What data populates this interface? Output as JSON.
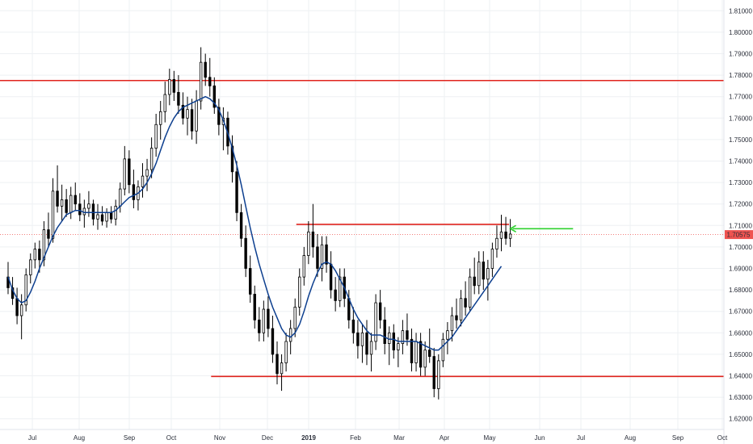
{
  "chart_data": {
    "type": "candlestick",
    "title": "",
    "xlabel": "",
    "ylabel": "",
    "ylim": [
      1.615,
      1.815
    ],
    "y_ticks": [
      "1.62000",
      "1.63000",
      "1.64000",
      "1.65000",
      "1.66000",
      "1.67000",
      "1.68000",
      "1.69000",
      "1.70000",
      "1.71000",
      "1.72000",
      "1.73000",
      "1.74000",
      "1.75000",
      "1.76000",
      "1.77000",
      "1.78000",
      "1.79000",
      "1.80000",
      "1.81000"
    ],
    "x_ticks": [
      "Jul",
      "Aug",
      "Sep",
      "Oct",
      "Nov",
      "Dec",
      "2019",
      "Feb",
      "Mar",
      "Apr",
      "May",
      "Jun",
      "Jul",
      "Aug",
      "Sep",
      "Oct"
    ],
    "last_price": "1.70575",
    "last_price_value": 1.70575,
    "grid": true,
    "colors": {
      "up": "#ffffff",
      "down": "#000000",
      "wick": "#000000",
      "moving_average": "#0d3f8f",
      "level_line": "#e0241d",
      "arrow": "#2fd12f",
      "price_label": "#ef5350",
      "grid": "#eef0f3"
    },
    "candles": [
      [
        1.686,
        1.693,
        1.678,
        1.681
      ],
      [
        1.681,
        1.686,
        1.673,
        1.676
      ],
      [
        1.676,
        1.681,
        1.664,
        1.668
      ],
      [
        1.668,
        1.678,
        1.657,
        1.673
      ],
      [
        1.673,
        1.69,
        1.67,
        1.687
      ],
      [
        1.687,
        1.697,
        1.683,
        1.694
      ],
      [
        1.694,
        1.702,
        1.69,
        1.699
      ],
      [
        1.699,
        1.703,
        1.688,
        1.694
      ],
      [
        1.694,
        1.712,
        1.691,
        1.708
      ],
      [
        1.708,
        1.716,
        1.7,
        1.704
      ],
      [
        1.704,
        1.732,
        1.702,
        1.726
      ],
      [
        1.726,
        1.738,
        1.716,
        1.719
      ],
      [
        1.719,
        1.729,
        1.712,
        1.722
      ],
      [
        1.722,
        1.727,
        1.714,
        1.716
      ],
      [
        1.716,
        1.728,
        1.713,
        1.724
      ],
      [
        1.724,
        1.73,
        1.717,
        1.72
      ],
      [
        1.72,
        1.725,
        1.712,
        1.715
      ],
      [
        1.715,
        1.722,
        1.709,
        1.718
      ],
      [
        1.718,
        1.726,
        1.714,
        1.72
      ],
      [
        1.72,
        1.722,
        1.71,
        1.713
      ],
      [
        1.713,
        1.72,
        1.708,
        1.715
      ],
      [
        1.715,
        1.719,
        1.71,
        1.712
      ],
      [
        1.712,
        1.718,
        1.709,
        1.716
      ],
      [
        1.716,
        1.719,
        1.711,
        1.713
      ],
      [
        1.713,
        1.722,
        1.71,
        1.719
      ],
      [
        1.719,
        1.73,
        1.716,
        1.727
      ],
      [
        1.727,
        1.747,
        1.724,
        1.741
      ],
      [
        1.741,
        1.745,
        1.725,
        1.729
      ],
      [
        1.729,
        1.736,
        1.718,
        1.722
      ],
      [
        1.722,
        1.731,
        1.717,
        1.728
      ],
      [
        1.728,
        1.739,
        1.723,
        1.733
      ],
      [
        1.733,
        1.741,
        1.726,
        1.736
      ],
      [
        1.736,
        1.751,
        1.732,
        1.746
      ],
      [
        1.746,
        1.762,
        1.742,
        1.757
      ],
      [
        1.757,
        1.768,
        1.75,
        1.763
      ],
      [
        1.763,
        1.777,
        1.758,
        1.771
      ],
      [
        1.771,
        1.783,
        1.766,
        1.778
      ],
      [
        1.778,
        1.782,
        1.768,
        1.772
      ],
      [
        1.772,
        1.78,
        1.762,
        1.766
      ],
      [
        1.766,
        1.772,
        1.757,
        1.76
      ],
      [
        1.76,
        1.77,
        1.752,
        1.764
      ],
      [
        1.764,
        1.769,
        1.75,
        1.754
      ],
      [
        1.754,
        1.773,
        1.748,
        1.768
      ],
      [
        1.768,
        1.793,
        1.764,
        1.786
      ],
      [
        1.786,
        1.79,
        1.775,
        1.779
      ],
      [
        1.779,
        1.788,
        1.77,
        1.775
      ],
      [
        1.775,
        1.779,
        1.762,
        1.765
      ],
      [
        1.765,
        1.769,
        1.752,
        1.757
      ],
      [
        1.757,
        1.765,
        1.745,
        1.76
      ],
      [
        1.76,
        1.763,
        1.743,
        1.747
      ],
      [
        1.747,
        1.752,
        1.73,
        1.735
      ],
      [
        1.735,
        1.74,
        1.712,
        1.716
      ],
      [
        1.716,
        1.72,
        1.7,
        1.704
      ],
      [
        1.704,
        1.71,
        1.686,
        1.69
      ],
      [
        1.69,
        1.696,
        1.674,
        1.678
      ],
      [
        1.678,
        1.682,
        1.662,
        1.666
      ],
      [
        1.666,
        1.672,
        1.656,
        1.66
      ],
      [
        1.66,
        1.675,
        1.656,
        1.671
      ],
      [
        1.671,
        1.677,
        1.658,
        1.662
      ],
      [
        1.662,
        1.668,
        1.646,
        1.65
      ],
      [
        1.65,
        1.656,
        1.636,
        1.641
      ],
      [
        1.641,
        1.65,
        1.633,
        1.646
      ],
      [
        1.646,
        1.66,
        1.642,
        1.656
      ],
      [
        1.656,
        1.666,
        1.65,
        1.662
      ],
      [
        1.662,
        1.676,
        1.658,
        1.672
      ],
      [
        1.672,
        1.69,
        1.668,
        1.686
      ],
      [
        1.686,
        1.7,
        1.682,
        1.696
      ],
      [
        1.696,
        1.712,
        1.692,
        1.707
      ],
      [
        1.707,
        1.72,
        1.695,
        1.7
      ],
      [
        1.7,
        1.706,
        1.686,
        1.69
      ],
      [
        1.69,
        1.705,
        1.684,
        1.701
      ],
      [
        1.701,
        1.705,
        1.688,
        1.692
      ],
      [
        1.692,
        1.698,
        1.676,
        1.68
      ],
      [
        1.68,
        1.686,
        1.67,
        1.675
      ],
      [
        1.675,
        1.69,
        1.672,
        1.686
      ],
      [
        1.686,
        1.69,
        1.672,
        1.676
      ],
      [
        1.676,
        1.68,
        1.662,
        1.666
      ],
      [
        1.666,
        1.672,
        1.655,
        1.66
      ],
      [
        1.66,
        1.666,
        1.648,
        1.654
      ],
      [
        1.654,
        1.664,
        1.646,
        1.66
      ],
      [
        1.66,
        1.666,
        1.645,
        1.65
      ],
      [
        1.65,
        1.66,
        1.642,
        1.656
      ],
      [
        1.656,
        1.678,
        1.652,
        1.674
      ],
      [
        1.674,
        1.68,
        1.662,
        1.666
      ],
      [
        1.666,
        1.672,
        1.65,
        1.655
      ],
      [
        1.655,
        1.663,
        1.645,
        1.66
      ],
      [
        1.66,
        1.664,
        1.648,
        1.652
      ],
      [
        1.652,
        1.658,
        1.644,
        1.655
      ],
      [
        1.655,
        1.666,
        1.65,
        1.661
      ],
      [
        1.661,
        1.669,
        1.654,
        1.657
      ],
      [
        1.657,
        1.662,
        1.642,
        1.646
      ],
      [
        1.646,
        1.66,
        1.642,
        1.656
      ],
      [
        1.656,
        1.66,
        1.64,
        1.644
      ],
      [
        1.644,
        1.656,
        1.64,
        1.652
      ],
      [
        1.652,
        1.662,
        1.646,
        1.649
      ],
      [
        1.649,
        1.653,
        1.63,
        1.634
      ],
      [
        1.634,
        1.65,
        1.629,
        1.647
      ],
      [
        1.647,
        1.66,
        1.644,
        1.657
      ],
      [
        1.657,
        1.665,
        1.65,
        1.661
      ],
      [
        1.661,
        1.672,
        1.656,
        1.668
      ],
      [
        1.668,
        1.676,
        1.662,
        1.666
      ],
      [
        1.666,
        1.68,
        1.663,
        1.676
      ],
      [
        1.676,
        1.684,
        1.668,
        1.672
      ],
      [
        1.672,
        1.69,
        1.67,
        1.686
      ],
      [
        1.686,
        1.695,
        1.678,
        1.682
      ],
      [
        1.682,
        1.698,
        1.678,
        1.693
      ],
      [
        1.693,
        1.698,
        1.68,
        1.685
      ],
      [
        1.685,
        1.694,
        1.675,
        1.69
      ],
      [
        1.69,
        1.702,
        1.686,
        1.699
      ],
      [
        1.699,
        1.71,
        1.695,
        1.704
      ],
      [
        1.704,
        1.715,
        1.698,
        1.707
      ],
      [
        1.707,
        1.714,
        1.701,
        1.704
      ],
      [
        1.704,
        1.713,
        1.7,
        1.706
      ]
    ],
    "moving_average": {
      "x_start_index": 0,
      "values": [
        1.686,
        1.68,
        1.676,
        1.674,
        1.675,
        1.679,
        1.684,
        1.69,
        1.695,
        1.7,
        1.705,
        1.709,
        1.712,
        1.715,
        1.716,
        1.717,
        1.717,
        1.716,
        1.716,
        1.716,
        1.716,
        1.716,
        1.716,
        1.716,
        1.717,
        1.719,
        1.721,
        1.723,
        1.724,
        1.725,
        1.727,
        1.73,
        1.734,
        1.739,
        1.745,
        1.751,
        1.756,
        1.76,
        1.763,
        1.765,
        1.766,
        1.767,
        1.768,
        1.769,
        1.77,
        1.769,
        1.767,
        1.764,
        1.759,
        1.753,
        1.746,
        1.738,
        1.729,
        1.719,
        1.709,
        1.7,
        1.692,
        1.685,
        1.678,
        1.672,
        1.667,
        1.662,
        1.659,
        1.658,
        1.66,
        1.664,
        1.67,
        1.677,
        1.683,
        1.688,
        1.692,
        1.693,
        1.692,
        1.689,
        1.685,
        1.681,
        1.676,
        1.671,
        1.667,
        1.664,
        1.661,
        1.659,
        1.659,
        1.659,
        1.658,
        1.657,
        1.657,
        1.656,
        1.656,
        1.656,
        1.656,
        1.656,
        1.655,
        1.654,
        1.653,
        1.652,
        1.652,
        1.654,
        1.656,
        1.658,
        1.661,
        1.664,
        1.667,
        1.67,
        1.673,
        1.676,
        1.679,
        1.682,
        1.685,
        1.688,
        1.691
      ]
    },
    "horizontal_lines": [
      {
        "y": 1.7775,
        "x_from_index": 0,
        "x_to": "end"
      },
      {
        "y": 1.7105,
        "x_from_index": 65,
        "x_to_index": 111
      },
      {
        "y": 1.6397,
        "x_from_index": 46,
        "x_to": "end"
      }
    ],
    "price_line": {
      "y": 1.70575
    },
    "arrow": {
      "y": 1.7085,
      "from_index": 126,
      "to_index": 112
    }
  }
}
